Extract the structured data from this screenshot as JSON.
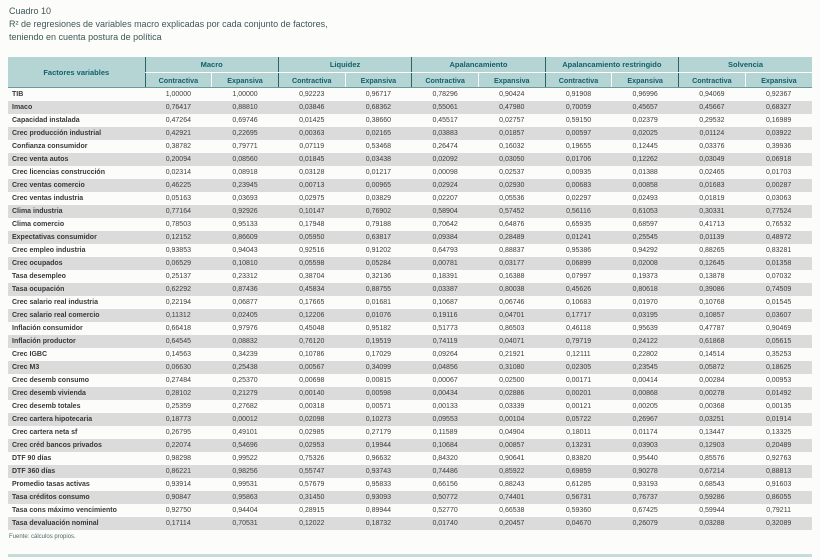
{
  "page": {
    "title": "Cuadro 10",
    "subtitle_line1": "R² de regresiones de variables macro explicadas por cada conjunto de factores,",
    "subtitle_line2": "teniendo en cuenta postura de política",
    "source": "Fuente: cálculos propios."
  },
  "colors": {
    "header_bg": "#b4d5d3",
    "header_text": "#135f6b",
    "row_stripe": "#dbdbdb",
    "group_divider": "#2a6468",
    "bottom_rule": "#c5dcdd"
  },
  "table": {
    "col1_header": "Factores variables",
    "groups": [
      "Macro",
      "Liquidez",
      "Apalancamiento",
      "Apalancamiento restringido",
      "Solvencia"
    ],
    "subheaders": [
      "Contractiva",
      "Expansiva"
    ],
    "rows": [
      {
        "label": "TIB",
        "values": [
          "1,00000",
          "1,00000",
          "0,92223",
          "0,96717",
          "0,78296",
          "0,90424",
          "0,91908",
          "0,96996",
          "0,94069",
          "0,92367"
        ]
      },
      {
        "label": "Imaco",
        "values": [
          "0,76417",
          "0,88810",
          "0,03846",
          "0,68362",
          "0,55061",
          "0,47980",
          "0,70059",
          "0,45657",
          "0,45667",
          "0,68327"
        ]
      },
      {
        "label": "Capacidad instalada",
        "values": [
          "0,47264",
          "0,69746",
          "0,01425",
          "0,38660",
          "0,45517",
          "0,02757",
          "0,59150",
          "0,02379",
          "0,29532",
          "0,16989"
        ]
      },
      {
        "label": "Crec producción industrial",
        "values": [
          "0,42921",
          "0,22695",
          "0,00363",
          "0,02165",
          "0,03883",
          "0,01857",
          "0,00597",
          "0,02025",
          "0,01124",
          "0,03922"
        ]
      },
      {
        "label": "Confianza consumidor",
        "values": [
          "0,38782",
          "0,79771",
          "0,07119",
          "0,53468",
          "0,26474",
          "0,16032",
          "0,19655",
          "0,12445",
          "0,03376",
          "0,39936"
        ]
      },
      {
        "label": "Crec venta autos",
        "values": [
          "0,20094",
          "0,08560",
          "0,01845",
          "0,03438",
          "0,02092",
          "0,03050",
          "0,01706",
          "0,12262",
          "0,03049",
          "0,06918"
        ]
      },
      {
        "label": "Crec licencias construcción",
        "values": [
          "0,02314",
          "0,08918",
          "0,03128",
          "0,01217",
          "0,00098",
          "0,02537",
          "0,00935",
          "0,01388",
          "0,02465",
          "0,01703"
        ]
      },
      {
        "label": "Crec ventas comercio",
        "values": [
          "0,46225",
          "0,23945",
          "0,00713",
          "0,00965",
          "0,02924",
          "0,02930",
          "0,00683",
          "0,00858",
          "0,01683",
          "0,00287"
        ]
      },
      {
        "label": "Crec ventas industria",
        "values": [
          "0,05163",
          "0,03693",
          "0,02975",
          "0,03829",
          "0,02207",
          "0,05536",
          "0,02297",
          "0,02493",
          "0,01819",
          "0,03063"
        ]
      },
      {
        "label": "Clima industria",
        "values": [
          "0,77164",
          "0,92926",
          "0,10147",
          "0,76902",
          "0,58904",
          "0,57452",
          "0,56116",
          "0,61053",
          "0,30331",
          "0,77524"
        ]
      },
      {
        "label": "Clima comercio",
        "values": [
          "0,78503",
          "0,95133",
          "0,17948",
          "0,79188",
          "0,70642",
          "0,64876",
          "0,65935",
          "0,68597",
          "0,41713",
          "0,76532"
        ]
      },
      {
        "label": "Expectativas consumidor",
        "values": [
          "0,12152",
          "0,86609",
          "0,05950",
          "0,63817",
          "0,09384",
          "0,28489",
          "0,01241",
          "0,25545",
          "0,01139",
          "0,48972"
        ]
      },
      {
        "label": "Crec empleo industria",
        "values": [
          "0,93853",
          "0,94043",
          "0,92516",
          "0,91202",
          "0,64793",
          "0,88837",
          "0,95386",
          "0,94292",
          "0,88265",
          "0,83281"
        ]
      },
      {
        "label": "Crec ocupados",
        "values": [
          "0,06529",
          "0,10810",
          "0,05598",
          "0,05284",
          "0,00781",
          "0,03177",
          "0,06899",
          "0,02008",
          "0,12645",
          "0,01358"
        ]
      },
      {
        "label": "Tasa desempleo",
        "values": [
          "0,25137",
          "0,23312",
          "0,38704",
          "0,32136",
          "0,18391",
          "0,16388",
          "0,07997",
          "0,19373",
          "0,13878",
          "0,07032"
        ]
      },
      {
        "label": "Tasa ocupación",
        "values": [
          "0,62292",
          "0,87436",
          "0,45834",
          "0,88755",
          "0,03387",
          "0,80038",
          "0,45626",
          "0,80618",
          "0,39086",
          "0,74509"
        ]
      },
      {
        "label": "Crec salario real industria",
        "values": [
          "0,22194",
          "0,06877",
          "0,17665",
          "0,01681",
          "0,10687",
          "0,06746",
          "0,10683",
          "0,01970",
          "0,10768",
          "0,01545"
        ]
      },
      {
        "label": "Crec salario real comercio",
        "values": [
          "0,11312",
          "0,02405",
          "0,12206",
          "0,01076",
          "0,19116",
          "0,04701",
          "0,17717",
          "0,03195",
          "0,10857",
          "0,03607"
        ]
      },
      {
        "label": "Inflación consumidor",
        "values": [
          "0,66418",
          "0,97976",
          "0,45048",
          "0,95182",
          "0,51773",
          "0,86503",
          "0,46118",
          "0,95639",
          "0,47787",
          "0,90469"
        ]
      },
      {
        "label": "Inflación productor",
        "values": [
          "0,64545",
          "0,08832",
          "0,76120",
          "0,19519",
          "0,74119",
          "0,04071",
          "0,79719",
          "0,24122",
          "0,61868",
          "0,05615"
        ]
      },
      {
        "label": "Crec IGBC",
        "values": [
          "0,14563",
          "0,34239",
          "0,10786",
          "0,17029",
          "0,09264",
          "0,21921",
          "0,12111",
          "0,22802",
          "0,14514",
          "0,35253"
        ]
      },
      {
        "label": "Crec M3",
        "values": [
          "0,06630",
          "0,25438",
          "0,00567",
          "0,34099",
          "0,04856",
          "0,31080",
          "0,02305",
          "0,23545",
          "0,05872",
          "0,18625"
        ]
      },
      {
        "label": "Crec desemb consumo",
        "values": [
          "0,27484",
          "0,25370",
          "0,00698",
          "0,00815",
          "0,00067",
          "0,02500",
          "0,00171",
          "0,00414",
          "0,00284",
          "0,00953"
        ]
      },
      {
        "label": "Crec desemb vivienda",
        "values": [
          "0,28102",
          "0,21279",
          "0,00140",
          "0,00598",
          "0,00434",
          "0,02886",
          "0,00201",
          "0,00868",
          "0,00278",
          "0,01492"
        ]
      },
      {
        "label": "Crec desemb totales",
        "values": [
          "0,25359",
          "0,27682",
          "0,00318",
          "0,00571",
          "0,00133",
          "0,03339",
          "0,00121",
          "0,00205",
          "0,00368",
          "0,00135"
        ]
      },
      {
        "label": "Crec cartera hipotecaria",
        "values": [
          "0,18773",
          "0,00012",
          "0,02098",
          "0,10273",
          "0,09553",
          "0,00104",
          "0,05722",
          "0,26967",
          "0,03251",
          "0,01914"
        ]
      },
      {
        "label": "Crec cartera neta sf",
        "values": [
          "0,26795",
          "0,49101",
          "0,02985",
          "0,27179",
          "0,11589",
          "0,04904",
          "0,18011",
          "0,01174",
          "0,13447",
          "0,13325"
        ]
      },
      {
        "label": "Crec créd bancos privados",
        "values": [
          "0,22074",
          "0,54696",
          "0,02953",
          "0,19944",
          "0,10684",
          "0,00857",
          "0,13231",
          "0,03903",
          "0,12903",
          "0,20489"
        ]
      },
      {
        "label": "DTF 90 días",
        "values": [
          "0,98298",
          "0,99522",
          "0,75326",
          "0,96632",
          "0,84320",
          "0,90641",
          "0,83820",
          "0,95440",
          "0,85576",
          "0,92763"
        ]
      },
      {
        "label": "DTF 360 días",
        "values": [
          "0,86221",
          "0,98256",
          "0,55747",
          "0,93743",
          "0,74486",
          "0,85922",
          "0,69859",
          "0,90278",
          "0,67214",
          "0,88813"
        ]
      },
      {
        "label": "Promedio tasas activas",
        "values": [
          "0,93914",
          "0,99531",
          "0,57679",
          "0,95833",
          "0,66156",
          "0,88243",
          "0,61285",
          "0,93193",
          "0,68543",
          "0,91603"
        ]
      },
      {
        "label": "Tasa créditos consumo",
        "values": [
          "0,90847",
          "0,95863",
          "0,31450",
          "0,93093",
          "0,50772",
          "0,74401",
          "0,56731",
          "0,76737",
          "0,59286",
          "0,86055"
        ]
      },
      {
        "label": "Tasa cons máximo vencimiento",
        "values": [
          "0,92750",
          "0,94404",
          "0,28915",
          "0,89944",
          "0,52770",
          "0,66538",
          "0,59360",
          "0,67425",
          "0,59944",
          "0,79211"
        ]
      },
      {
        "label": "Tasa devaluación nominal",
        "values": [
          "0,17114",
          "0,70531",
          "0,12022",
          "0,18732",
          "0,01740",
          "0,20457",
          "0,04670",
          "0,26079",
          "0,03288",
          "0,32089"
        ]
      }
    ]
  }
}
